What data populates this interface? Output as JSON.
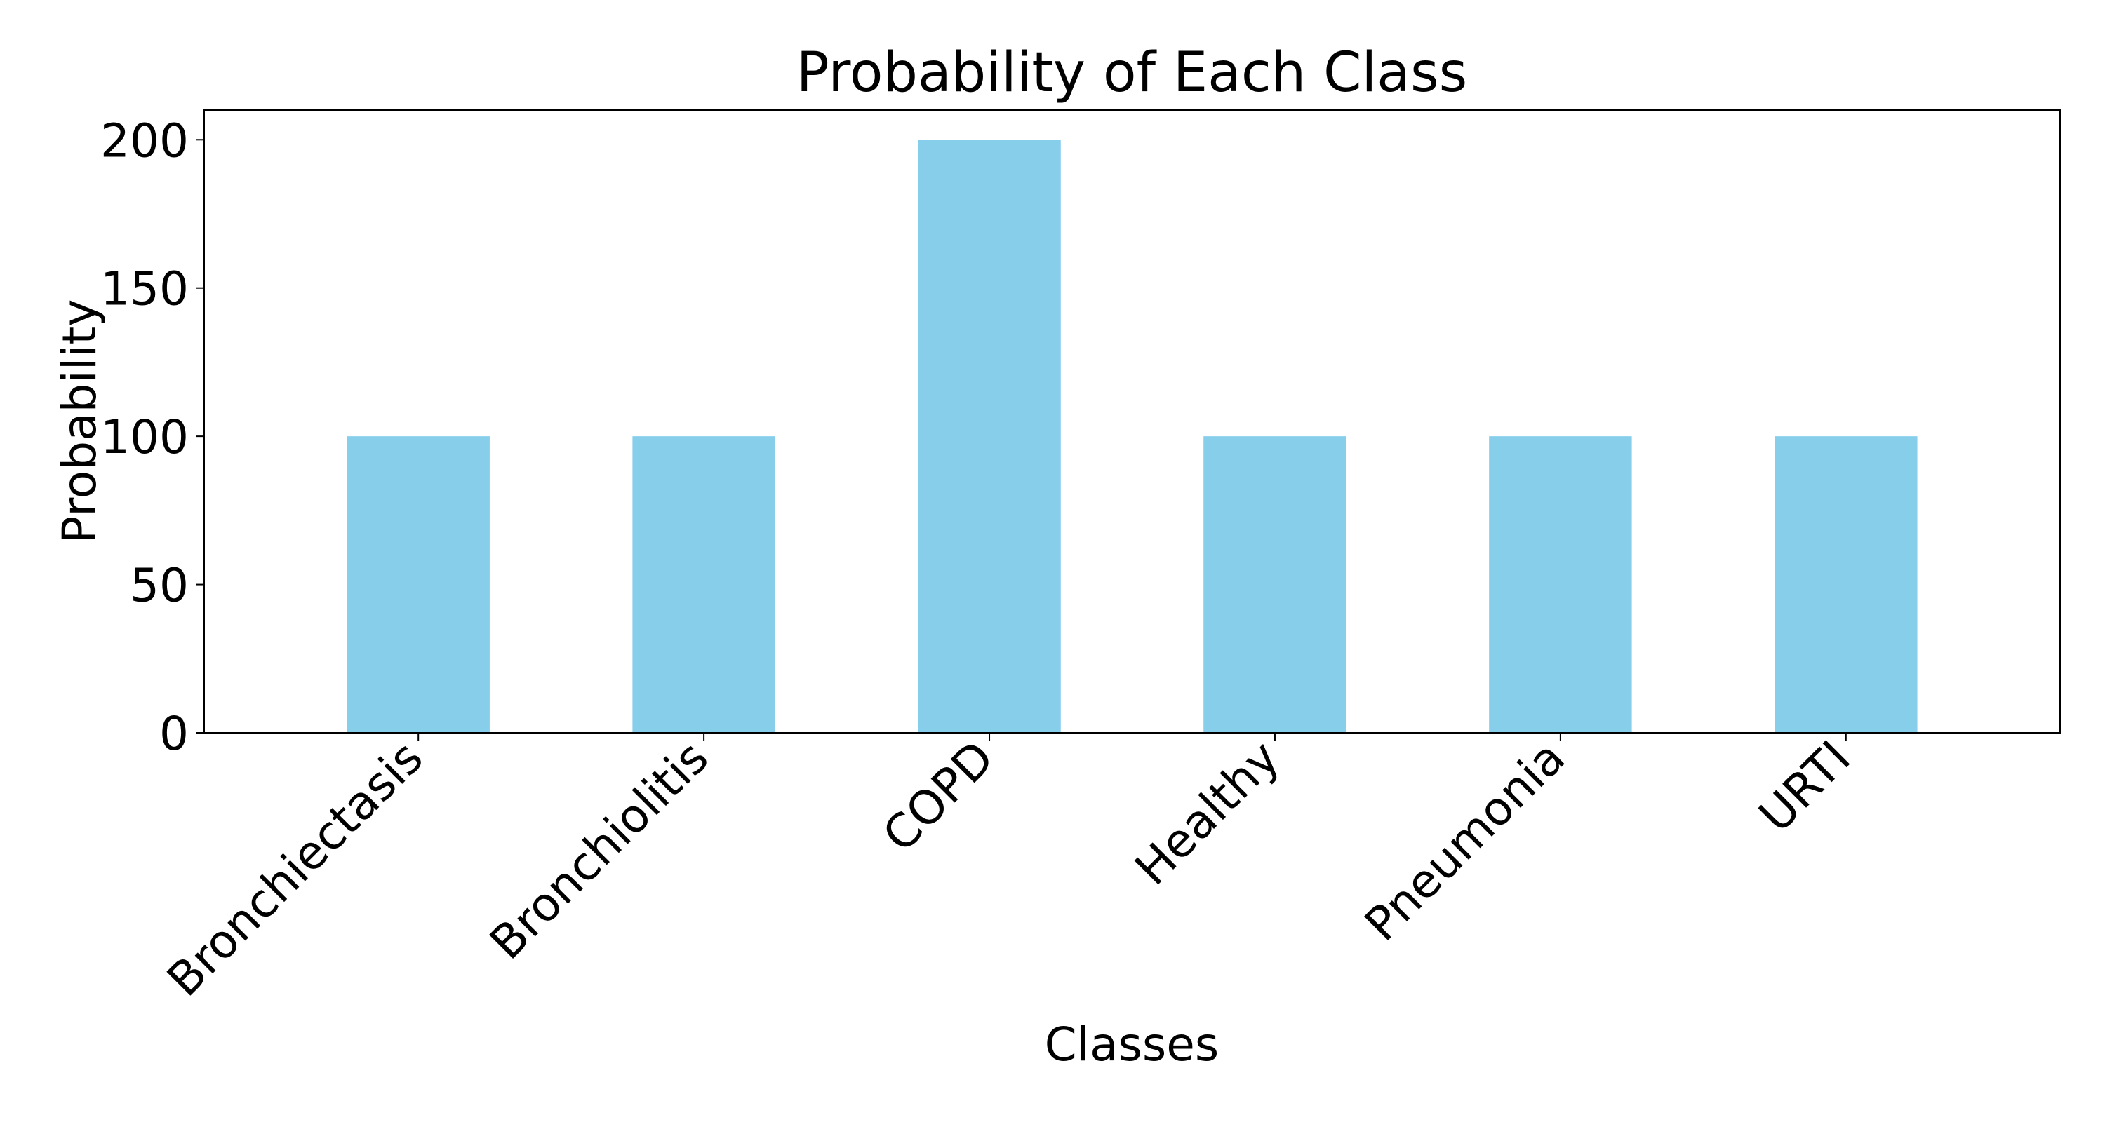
{
  "chart_data": {
    "type": "bar",
    "title": "Probability of Each Class",
    "xlabel": "Classes",
    "ylabel": "Probability",
    "categories": [
      "Bronchiectasis",
      "Bronchiolitis",
      "COPD",
      "Healthy",
      "Pneumonia",
      "URTI"
    ],
    "values": [
      100,
      100,
      200,
      100,
      100,
      100
    ],
    "ylim": [
      0,
      210
    ],
    "yticks": [
      0,
      50,
      100,
      150,
      200
    ],
    "grid": false,
    "legend": "none",
    "bar_color": "#87CEEB",
    "axis_color": "#000000"
  }
}
